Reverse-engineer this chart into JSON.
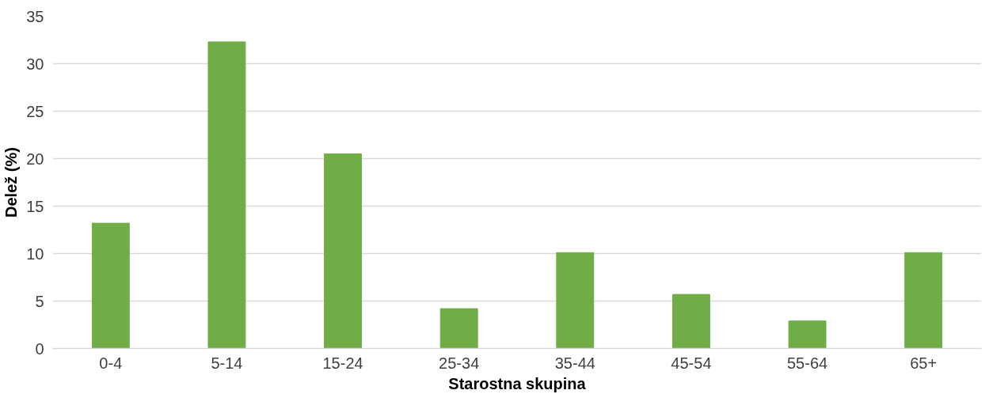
{
  "chart_data": {
    "type": "bar",
    "xlabel": "Starostna skupina",
    "ylabel": "Delež (%)",
    "categories": [
      "0-4",
      "5-14",
      "15-24",
      "25-34",
      "35-44",
      "45-54",
      "55-64",
      "65+"
    ],
    "values": [
      13.2,
      32.3,
      20.5,
      4.2,
      10.1,
      5.7,
      2.9,
      10.1
    ],
    "color": "#70ad47",
    "ylim": [
      0,
      35
    ],
    "yticks": [
      0,
      5,
      10,
      15,
      20,
      25,
      30,
      35
    ],
    "grid": "y"
  }
}
